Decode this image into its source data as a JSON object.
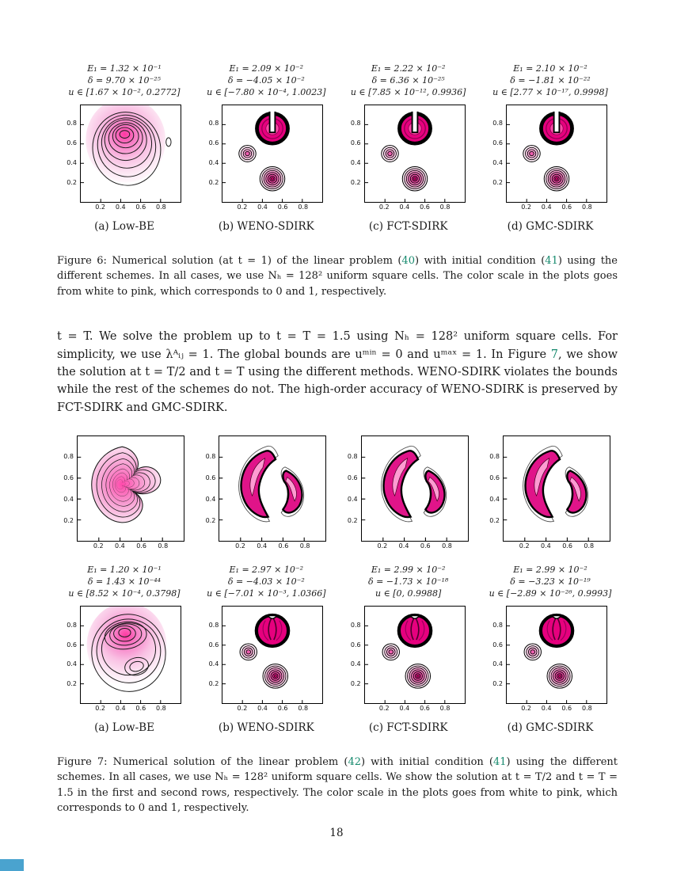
{
  "page": {
    "number": "18"
  },
  "axis": {
    "ticks": [
      "0.2",
      "0.4",
      "0.6",
      "0.8"
    ]
  },
  "colors": {
    "link_green": "#178a6e",
    "magenta": "#e6007e",
    "pink_light": "#fbc6e4",
    "corner_blue": "#4aa3cf"
  },
  "figure6": {
    "plots": [
      {
        "shape": "blob1",
        "stats": [
          "E₁ = 1.32 × 10⁻¹",
          "δ = 9.70 × 10⁻²⁵",
          "u ∈ [1.67 × 10⁻², 0.2772]"
        ],
        "label": "(a) Low-BE"
      },
      {
        "shape": "zalesak1",
        "stats": [
          "E₁ = 2.09 × 10⁻²",
          "δ = −4.05 × 10⁻²",
          "u ∈ [−7.80 × 10⁻⁴, 1.0023]"
        ],
        "label": "(b) WENO-SDIRK"
      },
      {
        "shape": "zalesak1",
        "stats": [
          "E₁ = 2.22 × 10⁻²",
          "δ = 6.36 × 10⁻²⁵",
          "u ∈ [7.85 × 10⁻¹², 0.9936]"
        ],
        "label": "(c) FCT-SDIRK"
      },
      {
        "shape": "zalesak1",
        "stats": [
          "E₁ = 2.10 × 10⁻²",
          "δ = −1.81 × 10⁻²²",
          "u ∈ [2.77 × 10⁻¹⁷, 0.9998]"
        ],
        "label": "(d) GMC-SDIRK"
      }
    ],
    "caption": [
      {
        "t": "Figure 6: Numerical solution (at t = 1) of the linear problem ("
      },
      {
        "t": "40",
        "link": true
      },
      {
        "t": ") with initial condition ("
      },
      {
        "t": "41",
        "link": true
      },
      {
        "t": ") using the different schemes. In all cases, we use Nₕ = 128² uniform square cells. The color scale in the plots goes from white to pink, which corresponds to 0 and 1, respectively."
      }
    ]
  },
  "paragraph": [
    {
      "t": "t = T. We solve the problem up to t = T = 1.5 using Nₕ = 128² uniform square cells. For simplicity, we use λᴬᵢⱼ = 1. The global bounds are uᵐⁱⁿ = 0 and uᵐᵃˣ = 1. In Figure "
    },
    {
      "t": "7",
      "link": true
    },
    {
      "t": ", we show the solution at t = T/2 and t = T using the different methods. WENO-SDIRK violates the bounds while the rest of the schemes do not. The high-order accuracy of WENO-SDIRK is preserved by FCT-SDIRK and GMC-SDIRK."
    }
  ],
  "figure7": {
    "row1": [
      {
        "shape": "swirlsmooth"
      },
      {
        "shape": "swirlsharp"
      },
      {
        "shape": "swirlsharp"
      },
      {
        "shape": "swirlsharp"
      }
    ],
    "row2": [
      {
        "shape": "blob2",
        "stats": [
          "E₁ = 1.20 × 10⁻¹",
          "δ = 1.43 × 10⁻⁴⁴",
          "u ∈ [8.52 × 10⁻⁴, 0.3798]"
        ],
        "label": "(a) Low-BE"
      },
      {
        "shape": "zalesak2",
        "stats": [
          "E₁ = 2.97 × 10⁻²",
          "δ = −4.03 × 10⁻²",
          "u ∈ [−7.01 × 10⁻³, 1.0366]"
        ],
        "label": "(b) WENO-SDIRK"
      },
      {
        "shape": "zalesak2",
        "stats": [
          "E₁ = 2.99 × 10⁻²",
          "δ = −1.73 × 10⁻¹⁸",
          "u ∈ [0, 0.9988]"
        ],
        "label": "(c) FCT-SDIRK"
      },
      {
        "shape": "zalesak2",
        "stats": [
          "E₁ = 2.99 × 10⁻²",
          "δ = −3.23 × 10⁻¹⁹",
          "u ∈ [−2.89 × 10⁻²⁶, 0.9993]"
        ],
        "label": "(d) GMC-SDIRK"
      }
    ],
    "caption": [
      {
        "t": "Figure 7: Numerical solution of the linear problem ("
      },
      {
        "t": "42",
        "link": true
      },
      {
        "t": ") with initial condition ("
      },
      {
        "t": "41",
        "link": true
      },
      {
        "t": ") using the different schemes. In all cases, we use Nₕ = 128² uniform square cells. We show the solution at t = T/2 and t = T = 1.5 in the first and second rows, respectively. The color scale in the plots goes from white to pink, which corresponds to 0 and 1, respectively."
      }
    ]
  }
}
